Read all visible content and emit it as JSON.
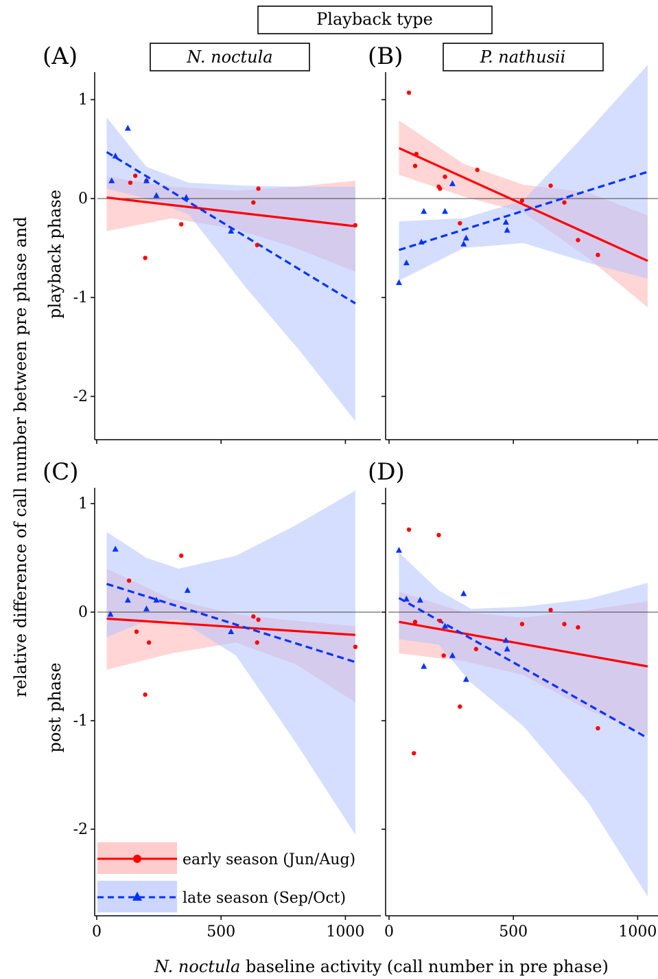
{
  "header": {
    "title": "Playback type"
  },
  "strips": {
    "left": "N. noctula",
    "right": "P. nathusii"
  },
  "axes": {
    "ylabel_line1": "relative difference of call number between pre phase and",
    "ylabel_row1": "playback phase",
    "ylabel_row2": "post phase",
    "xlabel_italic": "N. noctula",
    "xlabel_rest": " baseline activity (call number in pre phase)",
    "xticks": [
      "0",
      "500",
      "1000"
    ],
    "yticks": [
      "1",
      "0",
      "-1",
      "-2"
    ]
  },
  "legend": {
    "items": [
      {
        "label": "early season (Jun/Aug)",
        "color": "#ff0000",
        "marker": "circle",
        "dash": "solid"
      },
      {
        "label": "late season (Sep/Oct)",
        "color": "#0033ff",
        "marker": "triangle",
        "dash": "dashed"
      }
    ]
  },
  "chart_data": [
    {
      "type": "scatter",
      "panel": "(A)",
      "xlim": [
        0,
        1040
      ],
      "ylim": [
        -2.45,
        1.25
      ],
      "series": [
        {
          "name": "early season (Jun/Aug)",
          "points": [
            [
              135,
              0.16
            ],
            [
              155,
              0.23
            ],
            [
              195,
              -0.6
            ],
            [
              200,
              0.18
            ],
            [
              340,
              -0.26
            ],
            [
              630,
              -0.04
            ],
            [
              645,
              -0.47
            ],
            [
              650,
              0.1
            ],
            [
              1040,
              -0.27
            ]
          ],
          "fit": [
            [
              40,
              0.01
            ],
            [
              1040,
              -0.28
            ]
          ],
          "band": [
            [
              40,
              0.22,
              -0.33
            ],
            [
              300,
              0.12,
              -0.2
            ],
            [
              560,
              0.08,
              -0.31
            ],
            [
              800,
              0.12,
              -0.5
            ],
            [
              1040,
              0.18,
              -0.74
            ]
          ]
        },
        {
          "name": "late season (Sep/Oct)",
          "points": [
            [
              60,
              0.18
            ],
            [
              75,
              0.43
            ],
            [
              125,
              0.71
            ],
            [
              200,
              0.18
            ],
            [
              240,
              0.03
            ],
            [
              360,
              0.01
            ],
            [
              540,
              -0.33
            ]
          ],
          "fit": [
            [
              40,
              0.47
            ],
            [
              1040,
              -1.06
            ]
          ],
          "band": [
            [
              40,
              0.82,
              0.1
            ],
            [
              200,
              0.32,
              0.0
            ],
            [
              370,
              0.16,
              -0.16
            ],
            [
              600,
              0.13,
              -0.9
            ],
            [
              820,
              0.12,
              -1.55
            ],
            [
              1040,
              0.12,
              -2.25
            ]
          ]
        }
      ]
    },
    {
      "type": "scatter",
      "panel": "(B)",
      "xlim": [
        0,
        1040
      ],
      "ylim": [
        -2.45,
        1.25
      ],
      "series": [
        {
          "name": "early season (Jun/Aug)",
          "points": [
            [
              80,
              1.07
            ],
            [
              105,
              0.33
            ],
            [
              110,
              0.45
            ],
            [
              200,
              0.12
            ],
            [
              205,
              0.1
            ],
            [
              225,
              0.22
            ],
            [
              285,
              -0.25
            ],
            [
              355,
              0.29
            ],
            [
              535,
              -0.02
            ],
            [
              650,
              0.13
            ],
            [
              705,
              -0.04
            ],
            [
              760,
              -0.42
            ],
            [
              840,
              -0.57
            ]
          ],
          "fit": [
            [
              40,
              0.51
            ],
            [
              1040,
              -0.63
            ]
          ],
          "band": [
            [
              40,
              0.79,
              0.24
            ],
            [
              300,
              0.35,
              0.02
            ],
            [
              540,
              0.14,
              -0.14
            ],
            [
              800,
              0.06,
              -0.6
            ],
            [
              1040,
              -0.17,
              -1.1
            ]
          ]
        },
        {
          "name": "late season (Sep/Oct)",
          "points": [
            [
              40,
              -0.85
            ],
            [
              70,
              -0.65
            ],
            [
              130,
              -0.44
            ],
            [
              140,
              -0.13
            ],
            [
              225,
              -0.13
            ],
            [
              255,
              0.15
            ],
            [
              300,
              -0.46
            ],
            [
              310,
              -0.4
            ],
            [
              470,
              -0.24
            ],
            [
              475,
              -0.32
            ]
          ],
          "fit": [
            [
              40,
              -0.52
            ],
            [
              1040,
              0.27
            ]
          ],
          "band": [
            [
              40,
              -0.23,
              -0.83
            ],
            [
              300,
              -0.2,
              -0.5
            ],
            [
              540,
              -0.02,
              -0.45
            ],
            [
              800,
              0.68,
              -0.65
            ],
            [
              1040,
              1.35,
              -0.81
            ]
          ]
        }
      ]
    },
    {
      "type": "scatter",
      "panel": "(C)",
      "xlim": [
        0,
        1040
      ],
      "ylim": [
        -2.8,
        1.25
      ],
      "series": [
        {
          "name": "early season (Jun/Aug)",
          "points": [
            [
              130,
              0.29
            ],
            [
              160,
              -0.18
            ],
            [
              195,
              -0.76
            ],
            [
              210,
              -0.28
            ],
            [
              340,
              0.52
            ],
            [
              630,
              -0.04
            ],
            [
              645,
              -0.28
            ],
            [
              650,
              -0.07
            ],
            [
              1040,
              -0.32
            ]
          ],
          "fit": [
            [
              40,
              -0.06
            ],
            [
              1040,
              -0.21
            ]
          ],
          "band": [
            [
              40,
              0.4,
              -0.53
            ],
            [
              300,
              0.12,
              -0.38
            ],
            [
              560,
              -0.02,
              -0.28
            ],
            [
              800,
              -0.08,
              -0.48
            ],
            [
              1040,
              -0.13,
              -0.83
            ]
          ]
        },
        {
          "name": "late season (Sep/Oct)",
          "points": [
            [
              55,
              -0.02
            ],
            [
              75,
              0.58
            ],
            [
              125,
              0.11
            ],
            [
              200,
              0.03
            ],
            [
              240,
              0.11
            ],
            [
              365,
              0.2
            ],
            [
              540,
              -0.18
            ]
          ],
          "fit": [
            [
              40,
              0.26
            ],
            [
              1040,
              -0.46
            ]
          ],
          "band": [
            [
              40,
              0.74,
              -0.23
            ],
            [
              200,
              0.5,
              -0.08
            ],
            [
              330,
              0.4,
              -0.07
            ],
            [
              560,
              0.52,
              -0.4
            ],
            [
              800,
              0.8,
              -1.2
            ],
            [
              1040,
              1.12,
              -2.05
            ]
          ]
        }
      ]
    },
    {
      "type": "scatter",
      "panel": "(D)",
      "xlim": [
        0,
        1040
      ],
      "ylim": [
        -2.8,
        1.25
      ],
      "series": [
        {
          "name": "early season (Jun/Aug)",
          "points": [
            [
              80,
              0.76
            ],
            [
              100,
              -1.3
            ],
            [
              105,
              -0.09
            ],
            [
              200,
              0.71
            ],
            [
              205,
              -0.08
            ],
            [
              220,
              -0.4
            ],
            [
              285,
              -0.87
            ],
            [
              350,
              -0.34
            ],
            [
              535,
              -0.11
            ],
            [
              650,
              0.02
            ],
            [
              705,
              -0.11
            ],
            [
              760,
              -0.14
            ],
            [
              840,
              -1.07
            ]
          ],
          "fit": [
            [
              40,
              -0.09
            ],
            [
              1040,
              -0.5
            ]
          ],
          "band": [
            [
              40,
              0.19,
              -0.38
            ],
            [
              300,
              0.0,
              -0.45
            ],
            [
              540,
              -0.05,
              -0.58
            ],
            [
              800,
              0.02,
              -0.9
            ],
            [
              1040,
              0.1,
              -1.13
            ]
          ]
        },
        {
          "name": "late season (Sep/Oct)",
          "points": [
            [
              40,
              0.57
            ],
            [
              70,
              0.12
            ],
            [
              125,
              0.11
            ],
            [
              140,
              -0.5
            ],
            [
              225,
              -0.13
            ],
            [
              255,
              -0.4
            ],
            [
              300,
              0.17
            ],
            [
              310,
              -0.62
            ],
            [
              470,
              -0.26
            ],
            [
              475,
              -0.34
            ]
          ],
          "fit": [
            [
              40,
              0.13
            ],
            [
              1040,
              -1.16
            ]
          ],
          "band": [
            [
              40,
              0.55,
              -0.25
            ],
            [
              200,
              0.2,
              -0.3
            ],
            [
              330,
              0.03,
              -0.65
            ],
            [
              540,
              0.05,
              -1.05
            ],
            [
              800,
              0.12,
              -1.75
            ],
            [
              1040,
              0.27,
              -2.62
            ]
          ]
        }
      ]
    }
  ]
}
